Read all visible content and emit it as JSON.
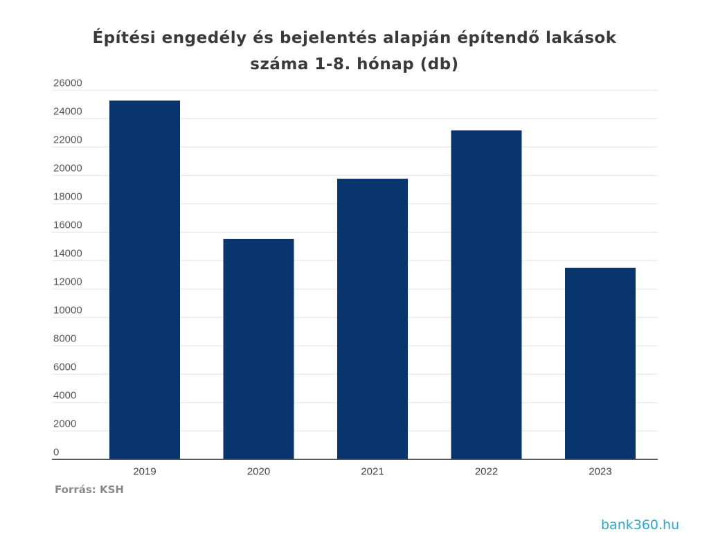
{
  "chart_data": {
    "type": "bar",
    "title": "Építési engedély és bejelentés alapján építendő lakások száma 1-8. hónap (db)",
    "categories": [
      "2019",
      "2020",
      "2021",
      "2022",
      "2023"
    ],
    "values": [
      25270,
      15530,
      19770,
      23170,
      13490
    ],
    "xlabel": "",
    "ylabel": "",
    "ylim": [
      0,
      26000
    ],
    "yticks": [
      "0",
      "2000",
      "4000",
      "6000",
      "8000",
      "10000",
      "12000",
      "14000",
      "16000",
      "18000",
      "20000",
      "22000",
      "24000",
      "26000"
    ],
    "grid": true,
    "bar_color": "#08356e",
    "legend": "none"
  },
  "source": "Forrás: KSH",
  "logo": "bank360.hu"
}
